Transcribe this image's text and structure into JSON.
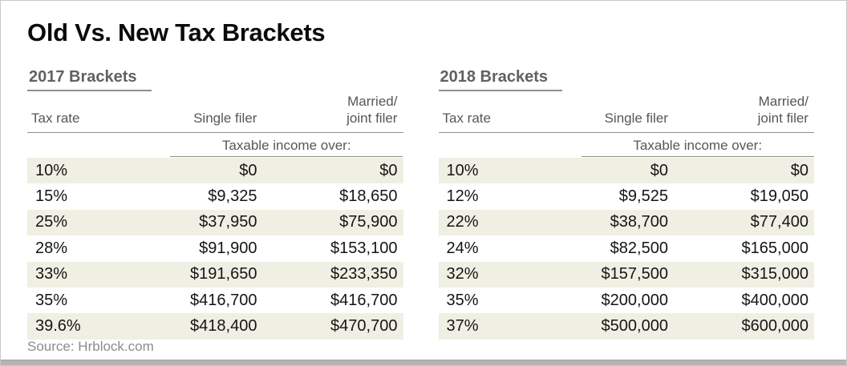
{
  "title": "Old Vs. New Tax Brackets",
  "source": "Source: Hrblock.com",
  "colors": {
    "row_highlight": "#f0efe3",
    "title_text": "#0b0b0b",
    "section_heading_text": "#616161",
    "column_header_text": "#575757",
    "data_text": "#151515",
    "rule_line": "#8f8f8f",
    "source_text": "#8c8c8c",
    "footer_bar": "#b5b5b5",
    "frame_border": "#c9c9c9"
  },
  "chart_data": [
    {
      "type": "table",
      "title": "2017 Brackets",
      "columns": [
        "Tax rate",
        "Single filer",
        "Married/\njoint filer"
      ],
      "subheader": "Taxable income over:",
      "rows": [
        [
          "10%",
          "$0",
          "$0"
        ],
        [
          "15%",
          "$9,325",
          "$18,650"
        ],
        [
          "25%",
          "$37,950",
          "$75,900"
        ],
        [
          "28%",
          "$91,900",
          "$153,100"
        ],
        [
          "33%",
          "$191,650",
          "$233,350"
        ],
        [
          "35%",
          "$416,700",
          "$416,700"
        ],
        [
          "39.6%",
          "$418,400",
          "$470,700"
        ]
      ]
    },
    {
      "type": "table",
      "title": "2018 Brackets",
      "columns": [
        "Tax rate",
        "Single filer",
        "Married/\njoint filer"
      ],
      "subheader": "Taxable income over:",
      "rows": [
        [
          "10%",
          "$0",
          "$0"
        ],
        [
          "12%",
          "$9,525",
          "$19,050"
        ],
        [
          "22%",
          "$38,700",
          "$77,400"
        ],
        [
          "24%",
          "$82,500",
          "$165,000"
        ],
        [
          "32%",
          "$157,500",
          "$315,000"
        ],
        [
          "35%",
          "$200,000",
          "$400,000"
        ],
        [
          "37%",
          "$500,000",
          "$600,000"
        ]
      ]
    }
  ]
}
